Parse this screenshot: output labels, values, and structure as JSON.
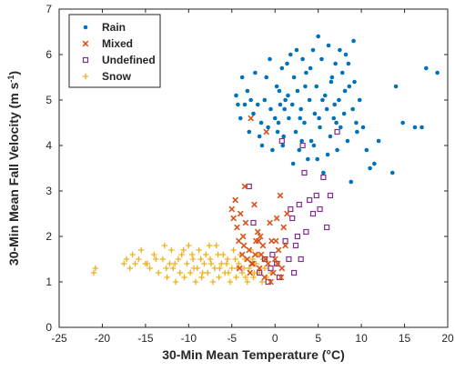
{
  "chart_data": {
    "type": "scatter",
    "xlabel": "30-Min Mean Temperature (°C)",
    "ylabel": "30-Min Mean Fall Velocity (m s",
    "ylabel_unit_exp": "-1",
    "ylabel_close": ")",
    "xlim": [
      -25,
      20
    ],
    "ylim": [
      0,
      7
    ],
    "xticks": [
      "-25",
      "-20",
      "-15",
      "-10",
      "-5",
      "0",
      "5",
      "10",
      "15",
      "20"
    ],
    "yticks": [
      "0",
      "1",
      "2",
      "3",
      "4",
      "5",
      "6",
      "7"
    ],
    "legend_position": "top-left",
    "series": [
      {
        "name": "Rain",
        "marker": "dot",
        "color": "#0072BD",
        "points": [
          [
            -4.5,
            5.1
          ],
          [
            -4.3,
            4.9
          ],
          [
            -4.0,
            4.6
          ],
          [
            -3.8,
            5.5
          ],
          [
            -3.5,
            4.9
          ],
          [
            -3.2,
            5.2
          ],
          [
            -3.0,
            4.3
          ],
          [
            -2.8,
            5.0
          ],
          [
            -2.5,
            4.7
          ],
          [
            -2.3,
            5.6
          ],
          [
            -2.0,
            4.9
          ],
          [
            -1.8,
            4.2
          ],
          [
            -1.5,
            4.0
          ],
          [
            -1.2,
            5.0
          ],
          [
            -1.0,
            5.5
          ],
          [
            -0.8,
            4.4
          ],
          [
            -0.5,
            4.8
          ],
          [
            -0.3,
            3.9
          ],
          [
            0.0,
            4.6
          ],
          [
            0.2,
            5.3
          ],
          [
            0.4,
            4.5
          ],
          [
            0.6,
            4.9
          ],
          [
            0.8,
            5.7
          ],
          [
            1.0,
            4.2
          ],
          [
            1.2,
            5.0
          ],
          [
            1.4,
            5.8
          ],
          [
            1.6,
            4.6
          ],
          [
            1.8,
            6.0
          ],
          [
            2.0,
            4.9
          ],
          [
            2.2,
            5.5
          ],
          [
            2.4,
            4.3
          ],
          [
            2.6,
            5.2
          ],
          [
            2.8,
            3.9
          ],
          [
            3.0,
            4.8
          ],
          [
            3.2,
            5.9
          ],
          [
            3.4,
            4.5
          ],
          [
            3.6,
            5.6
          ],
          [
            3.8,
            3.7
          ],
          [
            4.0,
            5.0
          ],
          [
            4.2,
            4.1
          ],
          [
            4.4,
            6.1
          ],
          [
            4.6,
            4.7
          ],
          [
            4.8,
            5.3
          ],
          [
            5.0,
            6.4
          ],
          [
            5.2,
            4.4
          ],
          [
            5.4,
            5.9
          ],
          [
            5.6,
            3.4
          ],
          [
            5.8,
            5.1
          ],
          [
            6.0,
            4.8
          ],
          [
            6.2,
            6.2
          ],
          [
            6.4,
            4.2
          ],
          [
            6.6,
            5.5
          ],
          [
            6.8,
            4.6
          ],
          [
            7.0,
            5.8
          ],
          [
            7.2,
            3.9
          ],
          [
            7.4,
            5.0
          ],
          [
            7.6,
            4.4
          ],
          [
            7.8,
            5.6
          ],
          [
            8.0,
            4.7
          ],
          [
            8.2,
            6.0
          ],
          [
            8.4,
            4.1
          ],
          [
            8.6,
            5.3
          ],
          [
            8.8,
            3.2
          ],
          [
            9.0,
            4.8
          ],
          [
            9.2,
            5.4
          ],
          [
            9.4,
            4.5
          ],
          [
            9.8,
            5.0
          ],
          [
            10.2,
            4.4
          ],
          [
            10.6,
            3.9
          ],
          [
            11.0,
            3.5
          ],
          [
            11.5,
            3.6
          ],
          [
            12.0,
            4.1
          ],
          [
            13.6,
            3.4
          ],
          [
            14.0,
            5.3
          ],
          [
            14.8,
            4.5
          ],
          [
            16.2,
            4.4
          ],
          [
            17.0,
            4.4
          ],
          [
            17.5,
            5.7
          ],
          [
            18.8,
            5.6
          ],
          [
            0.5,
            5.2
          ],
          [
            1.5,
            5.1
          ],
          [
            2.5,
            6.1
          ],
          [
            3.5,
            5.3
          ],
          [
            4.5,
            4.0
          ],
          [
            5.5,
            5.0
          ],
          [
            6.5,
            5.4
          ],
          [
            7.5,
            6.1
          ],
          [
            8.5,
            5.8
          ],
          [
            9.5,
            4.3
          ],
          [
            0.3,
            4.3
          ],
          [
            1.1,
            4.8
          ],
          [
            2.1,
            3.6
          ],
          [
            3.1,
            4.1
          ],
          [
            4.1,
            5.7
          ],
          [
            5.1,
            4.6
          ],
          [
            6.1,
            3.8
          ],
          [
            7.1,
            4.5
          ],
          [
            8.1,
            5.2
          ],
          [
            9.1,
            6.3
          ],
          [
            -1.6,
            4.5
          ],
          [
            -0.6,
            5.9
          ],
          [
            0.9,
            4.0
          ],
          [
            2.9,
            4.6
          ],
          [
            4.9,
            3.7
          ],
          [
            6.9,
            4.9
          ]
        ]
      },
      {
        "name": "Mixed",
        "marker": "x",
        "color": "#D95319",
        "points": [
          [
            -5.0,
            2.6
          ],
          [
            -4.8,
            2.4
          ],
          [
            -4.6,
            2.8
          ],
          [
            -4.4,
            2.2
          ],
          [
            -4.2,
            1.9
          ],
          [
            -4.0,
            2.5
          ],
          [
            -3.8,
            1.6
          ],
          [
            -3.6,
            1.8
          ],
          [
            -3.4,
            2.3
          ],
          [
            -3.2,
            1.5
          ],
          [
            -3.0,
            1.7
          ],
          [
            -2.8,
            4.6
          ],
          [
            -2.6,
            1.4
          ],
          [
            -2.4,
            2.7
          ],
          [
            -2.2,
            1.9
          ],
          [
            -2.0,
            2.1
          ],
          [
            -1.8,
            1.3
          ],
          [
            -1.6,
            1.6
          ],
          [
            -1.4,
            1.8
          ],
          [
            -1.2,
            1.1
          ],
          [
            -1.0,
            4.3
          ],
          [
            -0.8,
            1.4
          ],
          [
            -0.6,
            2.3
          ],
          [
            -0.4,
            1.9
          ],
          [
            -0.2,
            1.2
          ],
          [
            0.0,
            1.5
          ],
          [
            0.2,
            2.4
          ],
          [
            0.4,
            1.7
          ],
          [
            0.6,
            2.9
          ],
          [
            0.8,
            1.3
          ],
          [
            1.0,
            2.2
          ],
          [
            1.2,
            1.8
          ],
          [
            1.4,
            2.5
          ],
          [
            -4.1,
            1.3
          ],
          [
            -3.5,
            3.1
          ],
          [
            -2.9,
            1.2
          ],
          [
            -2.3,
            1.6
          ],
          [
            -1.7,
            2.0
          ],
          [
            -1.1,
            1.5
          ],
          [
            -0.5,
            1.0
          ],
          [
            0.1,
            1.9
          ],
          [
            0.7,
            1.1
          ],
          [
            -3.7,
            2.0
          ],
          [
            -2.7,
            1.4
          ],
          [
            -1.9,
            1.9
          ],
          [
            0.3,
            1.4
          ]
        ]
      },
      {
        "name": "Undefined",
        "marker": "square",
        "color": "#7E2F8E",
        "points": [
          [
            -3.0,
            3.1
          ],
          [
            -2.5,
            2.3
          ],
          [
            -1.8,
            1.2
          ],
          [
            -1.2,
            1.5
          ],
          [
            -0.8,
            1.0
          ],
          [
            -0.3,
            1.6
          ],
          [
            0.2,
            1.4
          ],
          [
            0.8,
            4.1
          ],
          [
            1.2,
            1.9
          ],
          [
            1.6,
            1.5
          ],
          [
            2.0,
            2.4
          ],
          [
            2.4,
            1.8
          ],
          [
            2.8,
            2.7
          ],
          [
            3.2,
            4.0
          ],
          [
            3.6,
            2.1
          ],
          [
            4.0,
            2.8
          ],
          [
            4.4,
            2.5
          ],
          [
            4.8,
            2.9
          ],
          [
            5.2,
            2.6
          ],
          [
            5.6,
            3.3
          ],
          [
            6.0,
            2.2
          ],
          [
            6.4,
            2.9
          ],
          [
            7.2,
            4.3
          ],
          [
            3.0,
            1.5
          ],
          [
            2.2,
            1.2
          ],
          [
            1.8,
            2.6
          ],
          [
            -0.5,
            1.3
          ],
          [
            0.5,
            1.1
          ],
          [
            3.4,
            3.4
          ],
          [
            2.6,
            2.0
          ]
        ]
      },
      {
        "name": "Snow",
        "marker": "plus",
        "color": "#EDB120",
        "points": [
          [
            -21.0,
            1.2
          ],
          [
            -20.8,
            1.3
          ],
          [
            -17.5,
            1.4
          ],
          [
            -17.2,
            1.5
          ],
          [
            -16.8,
            1.3
          ],
          [
            -16.5,
            1.6
          ],
          [
            -15.8,
            1.5
          ],
          [
            -15.5,
            1.7
          ],
          [
            -15.0,
            1.4
          ],
          [
            -14.5,
            1.3
          ],
          [
            -14.0,
            1.6
          ],
          [
            -13.5,
            1.2
          ],
          [
            -13.0,
            1.5
          ],
          [
            -12.8,
            1.8
          ],
          [
            -12.5,
            1.1
          ],
          [
            -12.2,
            1.4
          ],
          [
            -12.0,
            1.7
          ],
          [
            -11.8,
            1.3
          ],
          [
            -11.5,
            1.0
          ],
          [
            -11.2,
            1.5
          ],
          [
            -11.0,
            1.2
          ],
          [
            -10.8,
            1.6
          ],
          [
            -10.5,
            1.1
          ],
          [
            -10.2,
            1.4
          ],
          [
            -10.0,
            1.8
          ],
          [
            -9.8,
            1.2
          ],
          [
            -9.5,
            1.5
          ],
          [
            -9.2,
            1.0
          ],
          [
            -9.0,
            1.3
          ],
          [
            -8.8,
            1.7
          ],
          [
            -8.5,
            1.1
          ],
          [
            -8.2,
            1.4
          ],
          [
            -8.0,
            1.6
          ],
          [
            -7.8,
            1.2
          ],
          [
            -7.5,
            1.5
          ],
          [
            -7.2,
            1.0
          ],
          [
            -7.0,
            1.3
          ],
          [
            -6.8,
            1.8
          ],
          [
            -6.5,
            1.1
          ],
          [
            -6.2,
            1.4
          ],
          [
            -6.0,
            1.6
          ],
          [
            -5.8,
            1.2
          ],
          [
            -5.5,
            1.5
          ],
          [
            -5.2,
            1.0
          ],
          [
            -5.0,
            1.3
          ],
          [
            -4.8,
            1.7
          ],
          [
            -4.5,
            1.1
          ],
          [
            -4.2,
            1.4
          ],
          [
            -4.0,
            1.6
          ],
          [
            -3.8,
            1.2
          ],
          [
            -3.5,
            1.5
          ],
          [
            -3.2,
            1.0
          ],
          [
            -3.0,
            1.3
          ],
          [
            -2.8,
            1.7
          ],
          [
            -2.5,
            1.1
          ],
          [
            -2.2,
            1.4
          ],
          [
            -2.0,
            1.6
          ],
          [
            -1.8,
            1.2
          ],
          [
            -1.5,
            1.0
          ],
          [
            -1.2,
            1.3
          ],
          [
            -1.0,
            1.1
          ],
          [
            -0.5,
            1.2
          ],
          [
            -10.6,
            1.7
          ],
          [
            -9.6,
            1.6
          ],
          [
            -8.6,
            1.5
          ],
          [
            -7.6,
            1.8
          ],
          [
            -6.6,
            1.6
          ],
          [
            -5.6,
            1.4
          ],
          [
            -4.6,
            1.5
          ],
          [
            -3.6,
            1.3
          ],
          [
            -2.6,
            1.5
          ],
          [
            -11.6,
            1.4
          ],
          [
            -12.6,
            1.3
          ],
          [
            -13.8,
            1.5
          ],
          [
            -14.8,
            1.4
          ],
          [
            -16.2,
            1.4
          ],
          [
            -9.4,
            1.3
          ],
          [
            -8.4,
            1.2
          ],
          [
            -7.4,
            1.4
          ],
          [
            -6.4,
            1.3
          ],
          [
            -5.4,
            1.2
          ],
          [
            -4.4,
            1.3
          ],
          [
            -3.4,
            1.1
          ],
          [
            -2.4,
            1.2
          ],
          [
            -1.4,
            1.5
          ]
        ]
      }
    ]
  }
}
